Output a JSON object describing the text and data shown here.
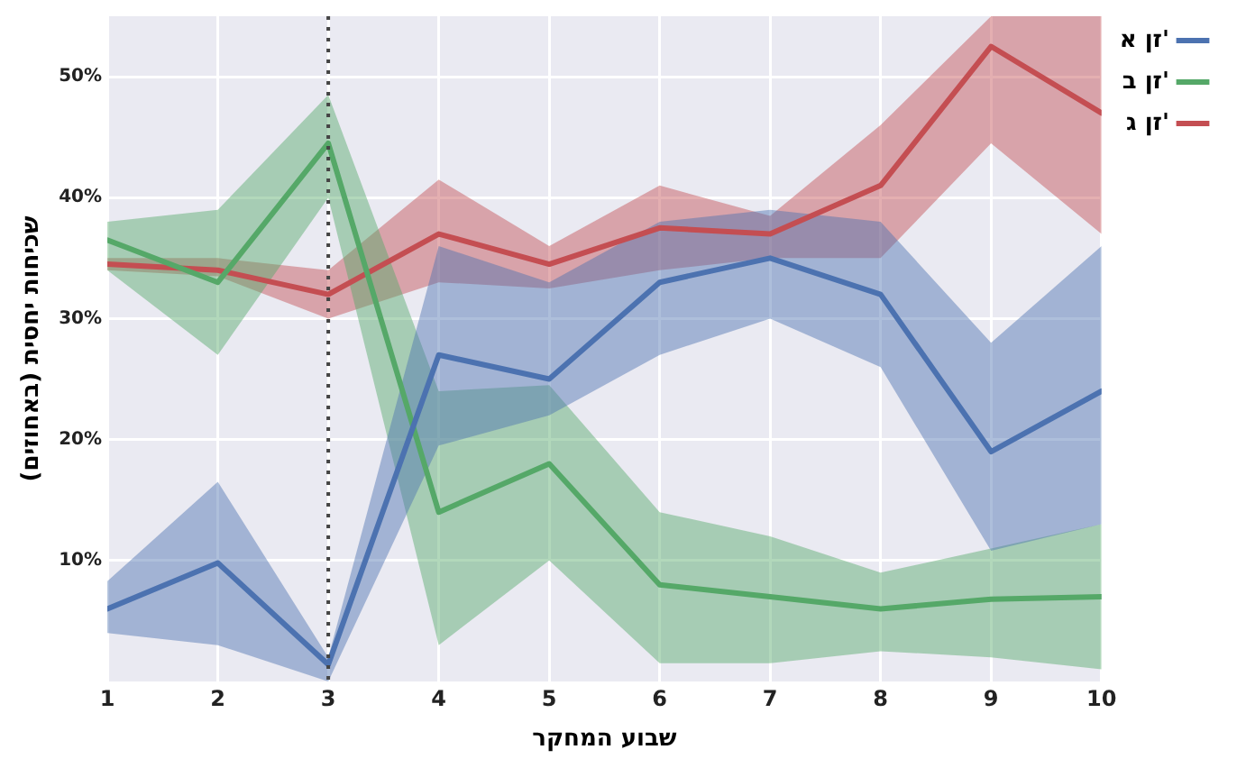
{
  "chart_data": {
    "type": "line",
    "xlabel": "שבוע המחקר",
    "ylabel": "שכיחות יחסית (באחוזים)",
    "x": [
      1,
      2,
      3,
      4,
      5,
      6,
      7,
      8,
      9,
      10
    ],
    "series": [
      {
        "name": "זן א'",
        "color": "#4c72b0",
        "values": [
          6,
          9.8,
          1.4,
          27,
          25,
          33,
          35,
          32,
          19,
          24
        ],
        "lower": [
          4,
          3,
          0,
          19.5,
          22,
          27,
          30,
          26,
          10.8,
          13
        ],
        "upper": [
          8.3,
          16.5,
          2,
          36,
          33,
          38,
          39,
          38,
          28,
          36
        ]
      },
      {
        "name": "זן ב'",
        "color": "#55a868",
        "values": [
          36.5,
          33,
          44.5,
          14,
          18,
          8,
          7,
          6,
          6.8,
          7
        ],
        "lower": [
          34,
          27,
          40,
          3,
          10,
          1.5,
          1.5,
          2.5,
          2,
          1
        ],
        "upper": [
          38,
          39,
          48.5,
          24,
          24.5,
          14,
          12,
          9,
          11,
          13
        ]
      },
      {
        "name": "זן ג'",
        "color": "#c44e52",
        "values": [
          34.5,
          34,
          32,
          37,
          34.5,
          37.5,
          37,
          41,
          52.5,
          47
        ],
        "lower": [
          34,
          33.5,
          30,
          33,
          32.5,
          34,
          35,
          35,
          44.5,
          37
        ],
        "upper": [
          35,
          35,
          34,
          41.5,
          36,
          41,
          38.5,
          46,
          55,
          55
        ]
      }
    ],
    "xlim": [
      1,
      10
    ],
    "xticks": [
      1,
      2,
      3,
      4,
      5,
      6,
      7,
      8,
      9,
      10
    ],
    "ylim": [
      0,
      55
    ],
    "yticks": [
      {
        "value": 10,
        "label": "10%"
      },
      {
        "value": 20,
        "label": "20%"
      },
      {
        "value": 30,
        "label": "30%"
      },
      {
        "value": 40,
        "label": "40%"
      },
      {
        "value": 50,
        "label": "50%"
      }
    ],
    "ref_lines": [
      {
        "axis": "x",
        "value": 3,
        "color": "#444444",
        "line_style": "dotted"
      }
    ],
    "grid": true,
    "legend": "top right",
    "marker": "none",
    "line_style": "solid"
  }
}
